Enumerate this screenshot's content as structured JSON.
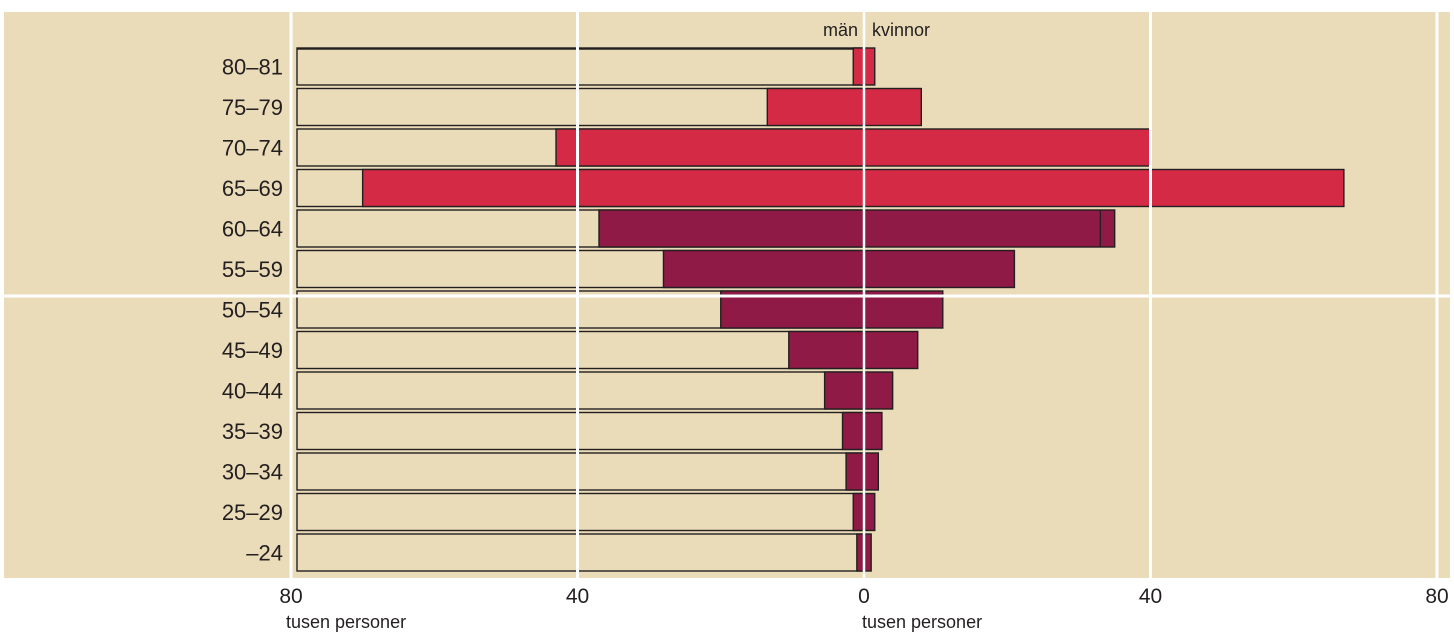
{
  "chart_data": {
    "type": "bar",
    "orientation": "horizontal",
    "layout": "population-pyramid",
    "categories": [
      "80–81",
      "75–79",
      "70–74",
      "65–69",
      "60–64",
      "55–59",
      "50–54",
      "45–49",
      "40–44",
      "35–39",
      "30–34",
      "25–29",
      "–24"
    ],
    "extra_top_row": true,
    "series": [
      {
        "name": "män",
        "side": "left",
        "values": [
          1.5,
          13.5,
          43,
          70,
          37,
          28,
          20,
          10.5,
          5.5,
          3,
          2.5,
          1.5,
          1
        ],
        "colors": [
          "#d42a45",
          "#d42a45",
          "#d42a45",
          "#d42a45",
          "#8e1a45",
          "#8e1a45",
          "#8e1a45",
          "#8e1a45",
          "#8e1a45",
          "#8e1a45",
          "#8e1a45",
          "#8e1a45",
          "#8e1a45"
        ]
      },
      {
        "name": "kvinnor",
        "side": "right",
        "values": [
          1.5,
          8,
          40,
          67,
          35,
          21,
          11,
          7.5,
          4,
          2.5,
          2,
          1.5,
          1
        ],
        "colors": [
          "#d42a45",
          "#d42a45",
          "#d42a45",
          "#d42a45",
          "#8e1a45",
          "#8e1a45",
          "#8e1a45",
          "#8e1a45",
          "#8e1a45",
          "#8e1a45",
          "#8e1a45",
          "#8e1a45",
          "#8e1a45"
        ]
      }
    ],
    "right_overlap_values": [
      0,
      0,
      0,
      0,
      33,
      0,
      0,
      0,
      0,
      0,
      0,
      0,
      0
    ],
    "ticks": [
      "80",
      "40",
      "0",
      "40",
      "80"
    ],
    "tick_values": [
      -80,
      -40,
      0,
      40,
      80
    ],
    "xlim": [
      -80,
      80
    ],
    "xlabel_left": "tusen personer",
    "xlabel_center": "tusen personer",
    "grid": true,
    "colors": {
      "background": "#ebdcb9",
      "grid": "#ffffff",
      "outline": "#231f20",
      "text": "#231f20"
    }
  }
}
